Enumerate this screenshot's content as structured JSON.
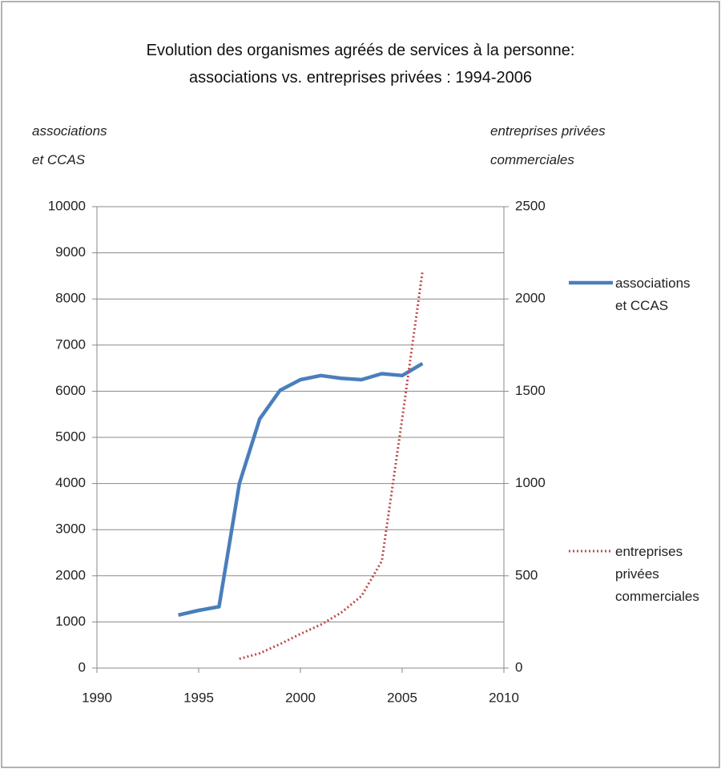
{
  "chart_data": {
    "type": "line",
    "title": "Evolution des organismes agréés de services à la personne: associations vs. entreprises privées : 1994-2006",
    "y_label": "associations et CCAS",
    "y2_label": "entreprises privées commerciales",
    "xlim": [
      1990,
      2010
    ],
    "xticks": [
      1990,
      1995,
      2000,
      2005,
      2010
    ],
    "ylim": [
      0,
      10000
    ],
    "yticks": [
      0,
      1000,
      2000,
      3000,
      4000,
      5000,
      6000,
      7000,
      8000,
      9000,
      10000
    ],
    "y2lim": [
      0,
      2500
    ],
    "y2ticks": [
      0,
      500,
      1000,
      1500,
      2000,
      2500
    ],
    "grid": true,
    "legend": "right",
    "series": [
      {
        "name": "associations et CCAS",
        "color": "#4a7ebb",
        "style": "solid",
        "x": [
          1994,
          1995,
          1996,
          1997,
          1998,
          1999,
          2000,
          2001,
          2002,
          2003,
          2004,
          2005,
          2006
        ],
        "values": [
          1150,
          1250,
          1330,
          4000,
          5400,
          6020,
          6250,
          6340,
          6280,
          6250,
          6380,
          6340,
          6600
        ]
      },
      {
        "name": "entreprises privées commerciales",
        "color": "#be4b48",
        "style": "dotted",
        "axis": "y2",
        "x": [
          1997,
          1998,
          1999,
          2000,
          2001,
          2002,
          2003,
          2004,
          2005,
          2006
        ],
        "values": [
          50,
          80,
          130,
          185,
          235,
          300,
          390,
          580,
          1350,
          2150
        ]
      }
    ]
  }
}
